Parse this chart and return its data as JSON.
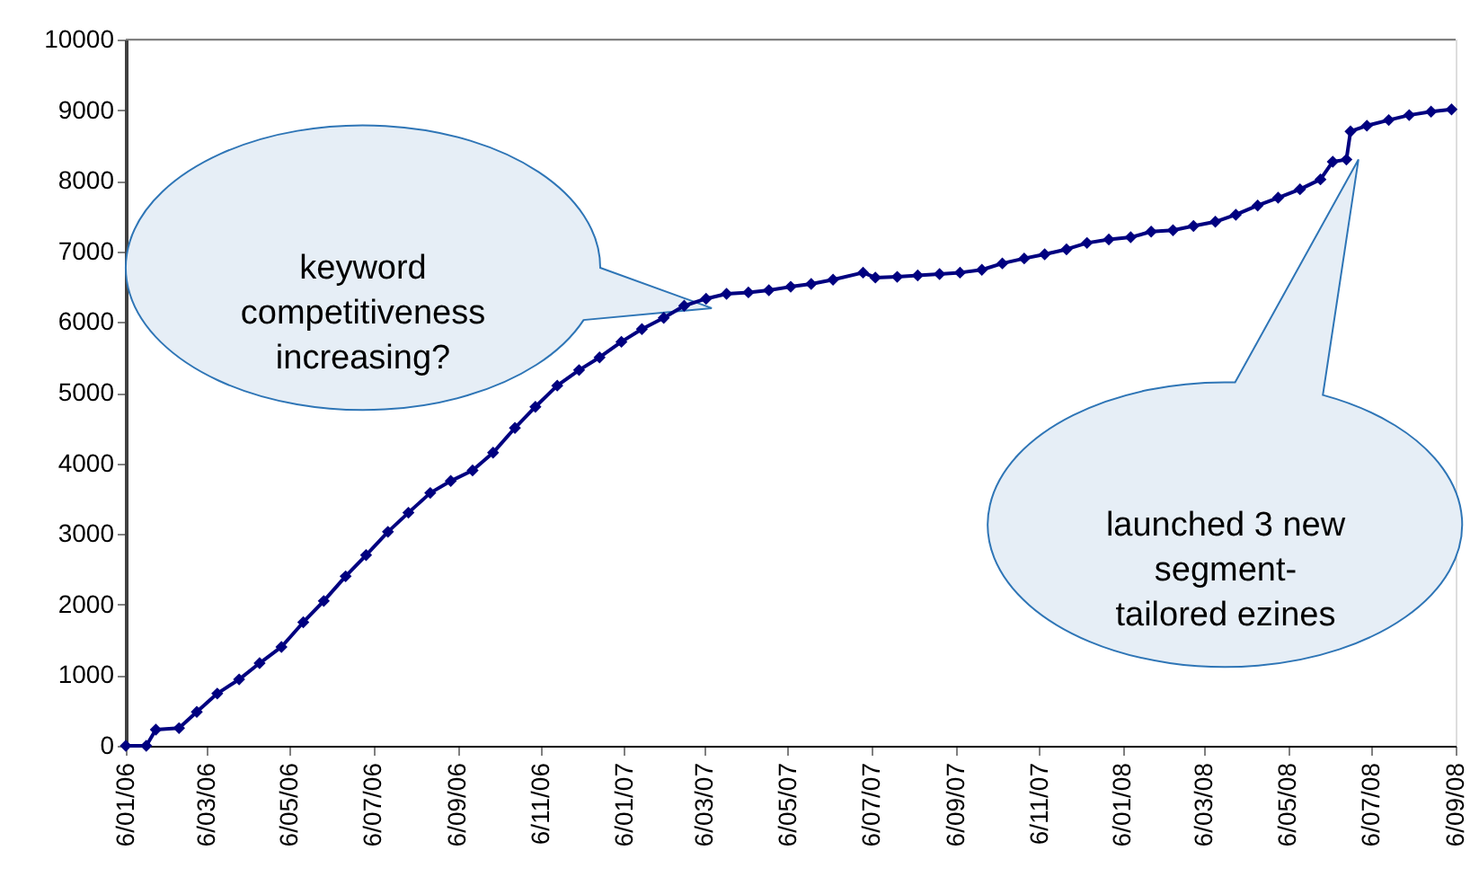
{
  "chart_data": {
    "type": "line",
    "x": [
      "2006-01-06",
      "2006-01-21",
      "2006-01-28",
      "2006-02-14",
      "2006-02-27",
      "2006-03-14",
      "2006-03-30",
      "2006-04-14",
      "2006-04-30",
      "2006-05-16",
      "2006-05-31",
      "2006-06-16",
      "2006-07-01",
      "2006-07-17",
      "2006-08-01",
      "2006-08-17",
      "2006-09-01",
      "2006-09-17",
      "2006-10-02",
      "2006-10-18",
      "2006-11-02",
      "2006-11-18",
      "2006-12-04",
      "2006-12-19",
      "2007-01-04",
      "2007-01-19",
      "2007-02-04",
      "2007-02-19",
      "2007-03-07",
      "2007-03-22",
      "2007-04-07",
      "2007-04-22",
      "2007-05-08",
      "2007-05-23",
      "2007-06-08",
      "2007-06-30",
      "2007-07-09",
      "2007-07-25",
      "2007-08-09",
      "2007-08-25",
      "2007-09-09",
      "2007-09-25",
      "2007-10-10",
      "2007-10-26",
      "2007-11-10",
      "2007-11-26",
      "2007-12-11",
      "2007-12-27",
      "2008-01-12",
      "2008-01-27",
      "2008-02-12",
      "2008-02-27",
      "2008-03-14",
      "2008-03-29",
      "2008-04-14",
      "2008-04-29",
      "2008-05-15",
      "2008-05-30",
      "2008-06-08",
      "2008-06-18",
      "2008-06-21",
      "2008-07-03",
      "2008-07-19",
      "2008-08-03",
      "2008-08-19",
      "2008-09-03"
    ],
    "series": [
      {
        "color": "#000080",
        "values": [
          0,
          0,
          230,
          250,
          480,
          740,
          940,
          1170,
          1400,
          1750,
          2050,
          2400,
          2700,
          3030,
          3300,
          3580,
          3750,
          3900,
          4150,
          4500,
          4800,
          5100,
          5320,
          5500,
          5720,
          5900,
          6060,
          6230,
          6330,
          6400,
          6420,
          6450,
          6500,
          6540,
          6600,
          6700,
          6630,
          6640,
          6660,
          6680,
          6700,
          6740,
          6830,
          6900,
          6960,
          7030,
          7120,
          7170,
          7200,
          7280,
          7300,
          7360,
          7420,
          7520,
          7650,
          7760,
          7880,
          8020,
          8270,
          8300,
          8700,
          8780,
          8860,
          8930,
          8980,
          9010
        ]
      }
    ],
    "xlim": [
      "2006-01-06",
      "2008-09-06"
    ],
    "xticks": [
      {
        "value": "2006-01-06",
        "label": "6/01/06"
      },
      {
        "value": "2006-03-06",
        "label": "6/03/06"
      },
      {
        "value": "2006-05-06",
        "label": "6/05/06"
      },
      {
        "value": "2006-07-06",
        "label": "6/07/06"
      },
      {
        "value": "2006-09-06",
        "label": "6/09/06"
      },
      {
        "value": "2006-11-06",
        "label": "6/11/06"
      },
      {
        "value": "2007-01-06",
        "label": "6/01/07"
      },
      {
        "value": "2007-03-06",
        "label": "6/03/07"
      },
      {
        "value": "2007-05-06",
        "label": "6/05/07"
      },
      {
        "value": "2007-07-06",
        "label": "6/07/07"
      },
      {
        "value": "2007-09-06",
        "label": "6/09/07"
      },
      {
        "value": "2007-11-06",
        "label": "6/11/07"
      },
      {
        "value": "2008-01-06",
        "label": "6/01/08"
      },
      {
        "value": "2008-03-06",
        "label": "6/03/08"
      },
      {
        "value": "2008-05-06",
        "label": "6/05/08"
      },
      {
        "value": "2008-07-06",
        "label": "6/07/08"
      },
      {
        "value": "2008-09-06",
        "label": "6/09/08"
      }
    ],
    "ylim": [
      0,
      10000
    ],
    "yticks": [
      0,
      1000,
      2000,
      3000,
      4000,
      5000,
      6000,
      7000,
      8000,
      9000,
      10000
    ],
    "annotations": [
      "keyword\ncompetitiveness\nincreasing?",
      "launched 3 new\nsegment-\ntailored ezines"
    ],
    "marker": "diamond",
    "line_style": "solid",
    "grid": false
  }
}
